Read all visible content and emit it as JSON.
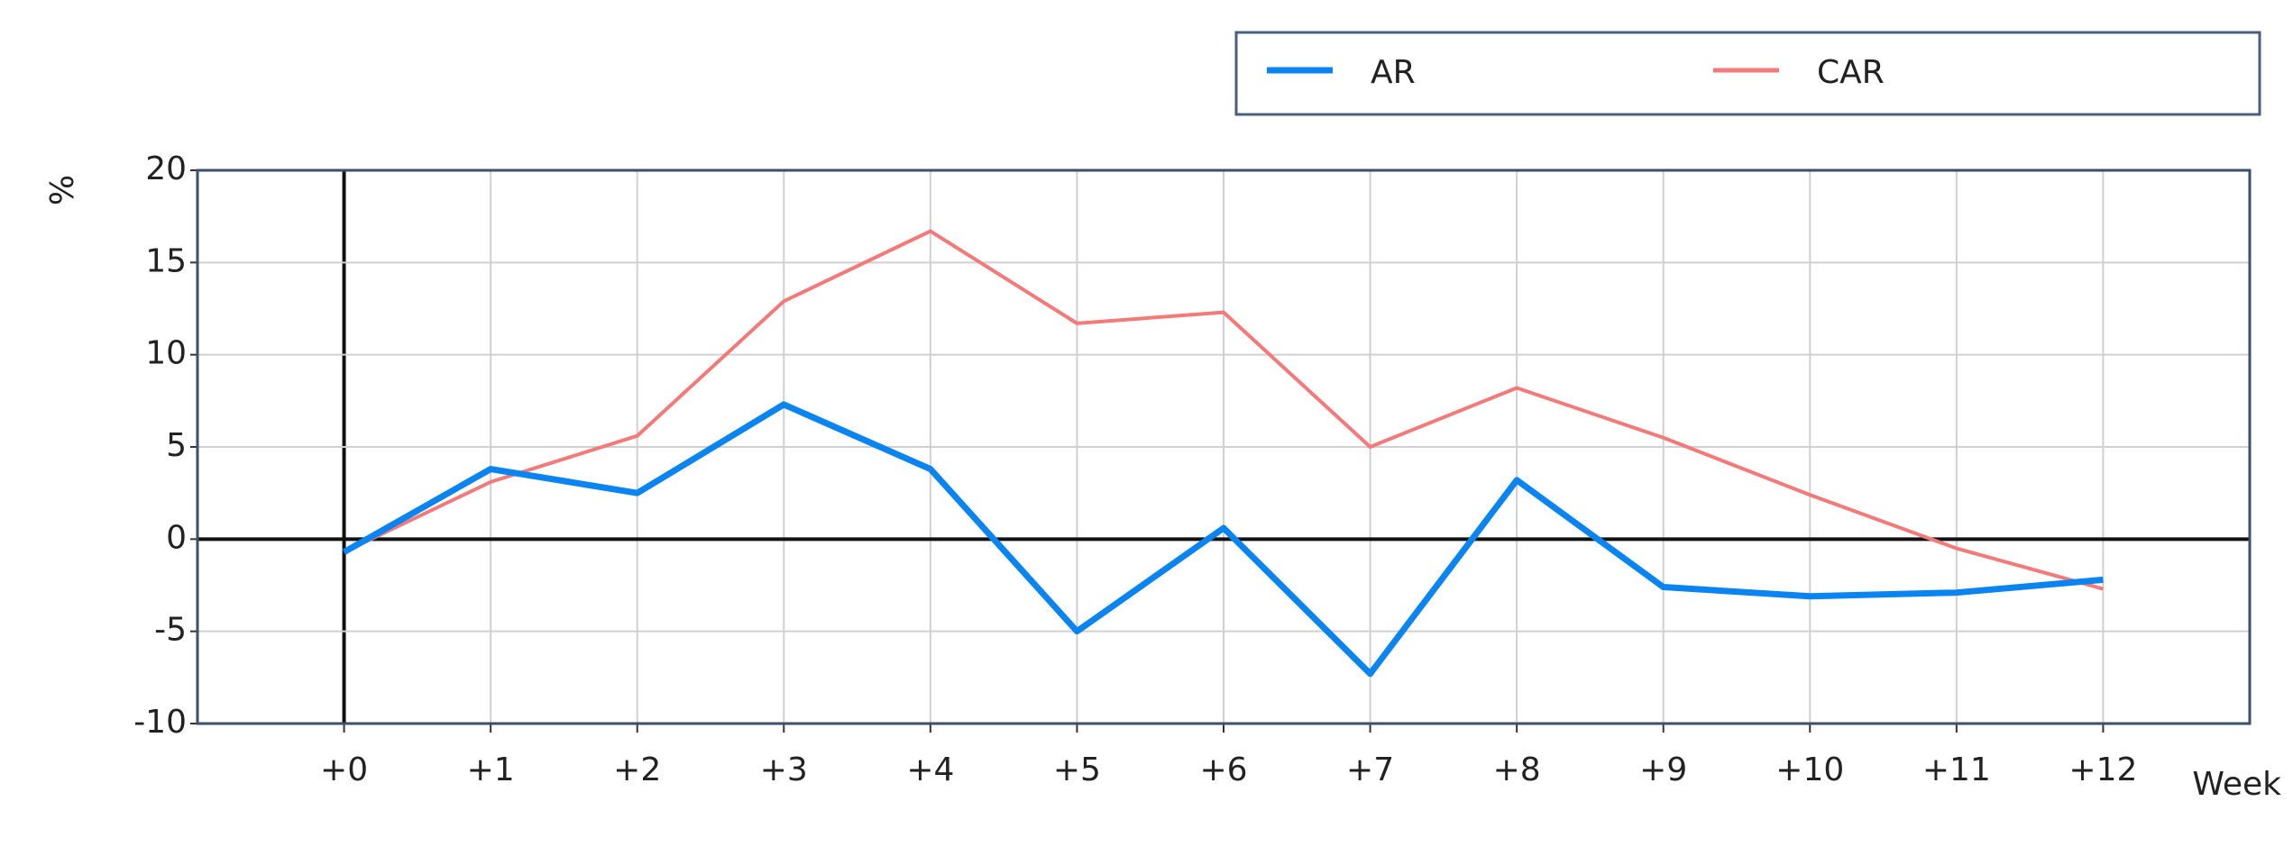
{
  "chart_data": {
    "type": "line",
    "x_label": "Week",
    "y_label": "%",
    "categories": [
      "+0",
      "+1",
      "+2",
      "+3",
      "+4",
      "+5",
      "+6",
      "+7",
      "+8",
      "+9",
      "+10",
      "+11",
      "+12"
    ],
    "series": [
      {
        "name": "AR",
        "color": "#0a84f0",
        "values": [
          -0.7,
          3.8,
          2.5,
          7.3,
          3.8,
          -5.0,
          0.6,
          -7.3,
          3.2,
          -2.6,
          -3.1,
          -2.9,
          -2.2
        ]
      },
      {
        "name": "CAR",
        "color": "#f47a7a",
        "values": [
          -0.7,
          3.1,
          5.6,
          12.9,
          16.7,
          11.7,
          12.3,
          5.0,
          8.2,
          5.5,
          2.4,
          -0.5,
          -2.7
        ]
      }
    ],
    "ylim": [
      -10,
      20
    ],
    "yticks": [
      -10,
      -5,
      0,
      5,
      10,
      15,
      20
    ],
    "grid": true,
    "legend": "top-right"
  }
}
